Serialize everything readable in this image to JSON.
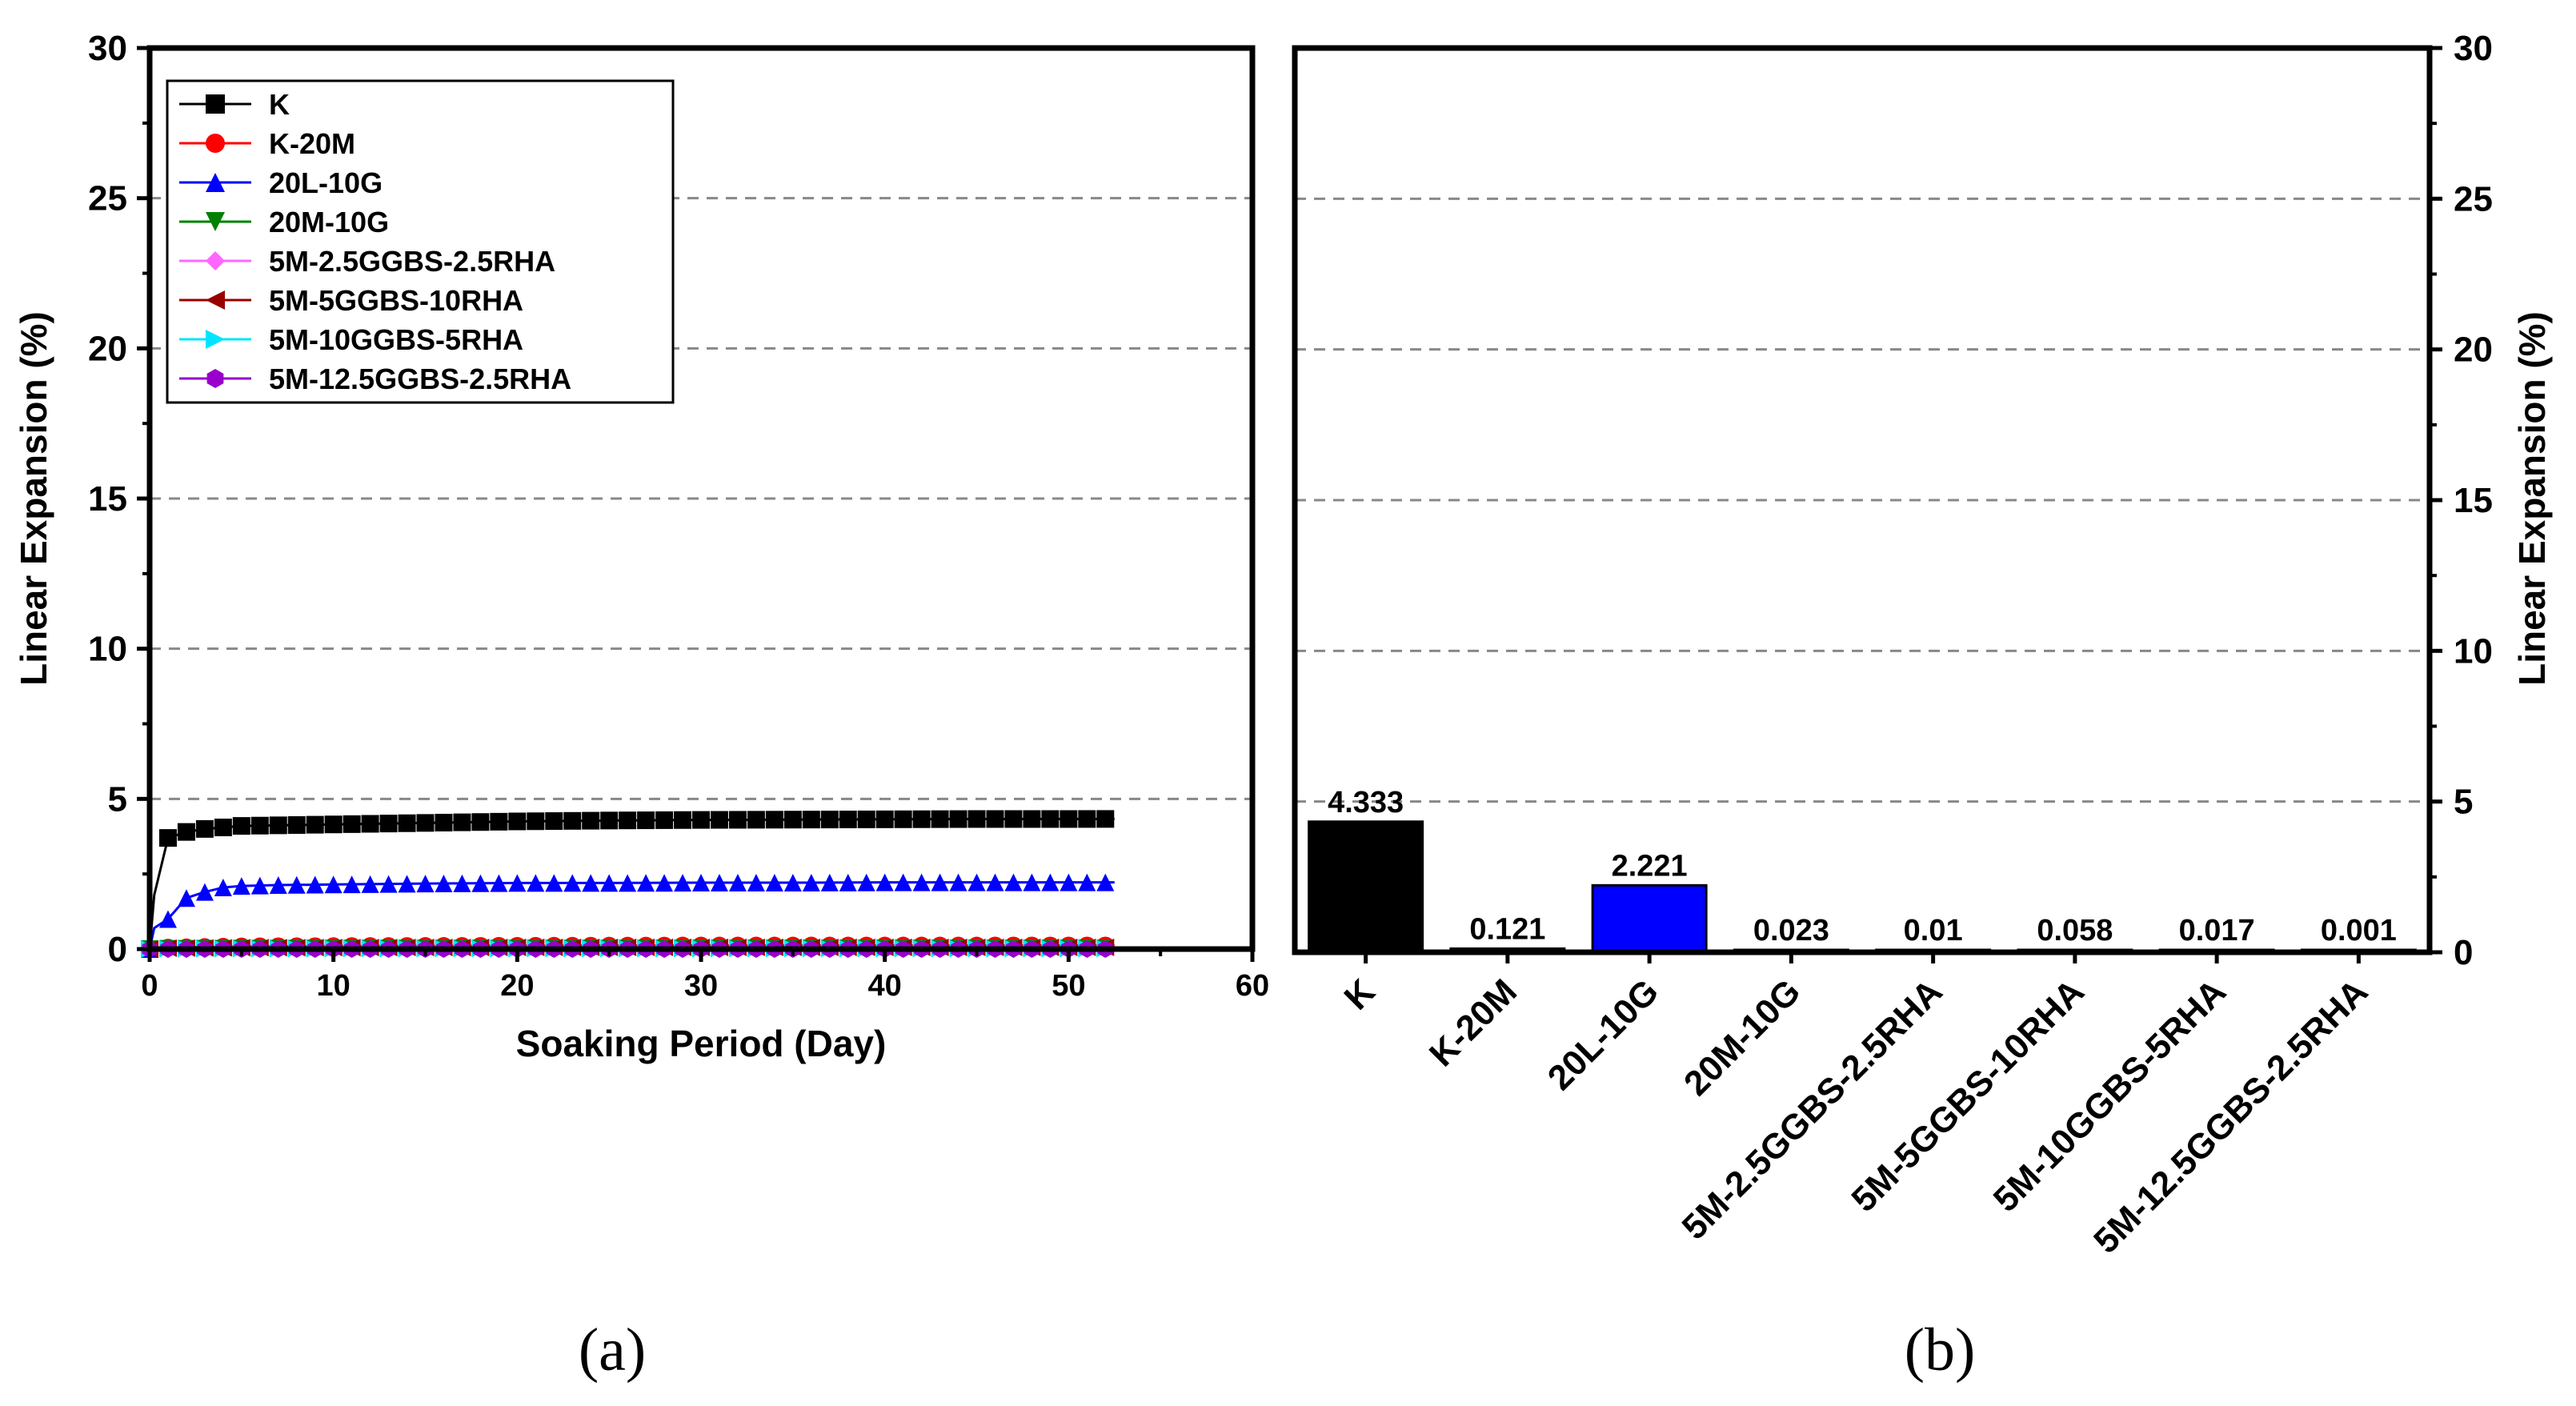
{
  "chart_data": [
    {
      "type": "line",
      "panel_label": "(a)",
      "xlabel": "Soaking Period (Day)",
      "ylabel": "Linear Expansion (%)",
      "xlim": [
        0,
        60
      ],
      "ylim": [
        0,
        30
      ],
      "xticks": [
        0,
        10,
        20,
        30,
        40,
        50,
        60
      ],
      "yticks": [
        0,
        5,
        10,
        15,
        20,
        25,
        30
      ],
      "grid": "horizontal dashed",
      "legend_position": "top-left",
      "series": [
        {
          "name": "K",
          "color": "#000000",
          "marker": "square",
          "x": [
            0,
            0.25,
            1,
            2,
            3,
            4,
            5,
            7,
            10,
            15,
            20,
            25,
            30,
            35,
            40,
            45,
            50,
            52.5
          ],
          "y": [
            0,
            1.8,
            3.7,
            3.9,
            4.0,
            4.05,
            4.1,
            4.12,
            4.15,
            4.2,
            4.25,
            4.28,
            4.3,
            4.31,
            4.32,
            4.33,
            4.33,
            4.333
          ]
        },
        {
          "name": "K-20M",
          "color": "#ff0000",
          "marker": "circle",
          "x": [
            0,
            1,
            5,
            10,
            20,
            30,
            40,
            50,
            52.5
          ],
          "y": [
            0,
            0.05,
            0.09,
            0.1,
            0.11,
            0.12,
            0.12,
            0.121,
            0.121
          ]
        },
        {
          "name": "20L-10G",
          "color": "#0000ff",
          "marker": "triangle-up",
          "x": [
            0,
            0.25,
            1,
            2,
            3,
            4,
            5,
            7,
            10,
            15,
            20,
            25,
            30,
            35,
            40,
            45,
            50,
            52.5
          ],
          "y": [
            0,
            0.7,
            1.0,
            1.7,
            1.9,
            2.05,
            2.1,
            2.13,
            2.15,
            2.18,
            2.2,
            2.2,
            2.21,
            2.21,
            2.22,
            2.22,
            2.22,
            2.221
          ]
        },
        {
          "name": "20M-10G",
          "color": "#008000",
          "marker": "triangle-down",
          "x": [
            0,
            1,
            5,
            10,
            20,
            30,
            40,
            50,
            52.5
          ],
          "y": [
            0,
            0.01,
            0.015,
            0.02,
            0.02,
            0.022,
            0.023,
            0.023,
            0.023
          ]
        },
        {
          "name": "5M-2.5GGBS-2.5RHA",
          "color": "#ff66ff",
          "marker": "diamond",
          "x": [
            0,
            1,
            5,
            10,
            20,
            30,
            40,
            50,
            52.5
          ],
          "y": [
            0,
            0.005,
            0.008,
            0.01,
            0.01,
            0.01,
            0.01,
            0.01,
            0.01
          ]
        },
        {
          "name": "5M-5GGBS-10RHA",
          "color": "#990000",
          "marker": "triangle-left",
          "x": [
            0,
            1,
            5,
            10,
            20,
            30,
            40,
            50,
            52.5
          ],
          "y": [
            0,
            0.03,
            0.045,
            0.05,
            0.055,
            0.057,
            0.058,
            0.058,
            0.058
          ]
        },
        {
          "name": "5M-10GGBS-5RHA",
          "color": "#00e5ff",
          "marker": "triangle-right",
          "x": [
            0,
            1,
            5,
            10,
            20,
            30,
            40,
            50,
            52.5
          ],
          "y": [
            0,
            0.008,
            0.012,
            0.015,
            0.016,
            0.017,
            0.017,
            0.017,
            0.017
          ]
        },
        {
          "name": "5M-12.5GGBS-2.5RHA",
          "color": "#9900cc",
          "marker": "hexagon",
          "x": [
            0,
            1,
            5,
            10,
            20,
            30,
            40,
            50,
            52.5
          ],
          "y": [
            0,
            0.001,
            0.001,
            0.001,
            0.001,
            0.001,
            0.001,
            0.001,
            0.001
          ]
        }
      ]
    },
    {
      "type": "bar",
      "panel_label": "(b)",
      "ylabel": "Linear Expansion (%)",
      "ylim": [
        0,
        30
      ],
      "yticks": [
        0,
        5,
        10,
        15,
        20,
        25,
        30
      ],
      "grid": "horizontal dashed",
      "categories": [
        "K",
        "K-20M",
        "20L-10G",
        "20M-10G",
        "5M-2.5GGBS-2.5RHA",
        "5M-5GGBS-10RHA",
        "5M-10GGBS-5RHA",
        "5M-12.5GGBS-2.5RHA"
      ],
      "values": [
        4.333,
        0.121,
        2.221,
        0.023,
        0.01,
        0.058,
        0.017,
        0.001
      ],
      "value_labels": [
        "4.333",
        "0.121",
        "2.221",
        "0.023",
        "0.01",
        "0.058",
        "0.017",
        "0.001"
      ],
      "bar_colors": [
        "#000000",
        "#ff0000",
        "#0000ff",
        "#008000",
        "#ff66ff",
        "#990000",
        "#00e5ff",
        "#9900cc"
      ]
    }
  ]
}
